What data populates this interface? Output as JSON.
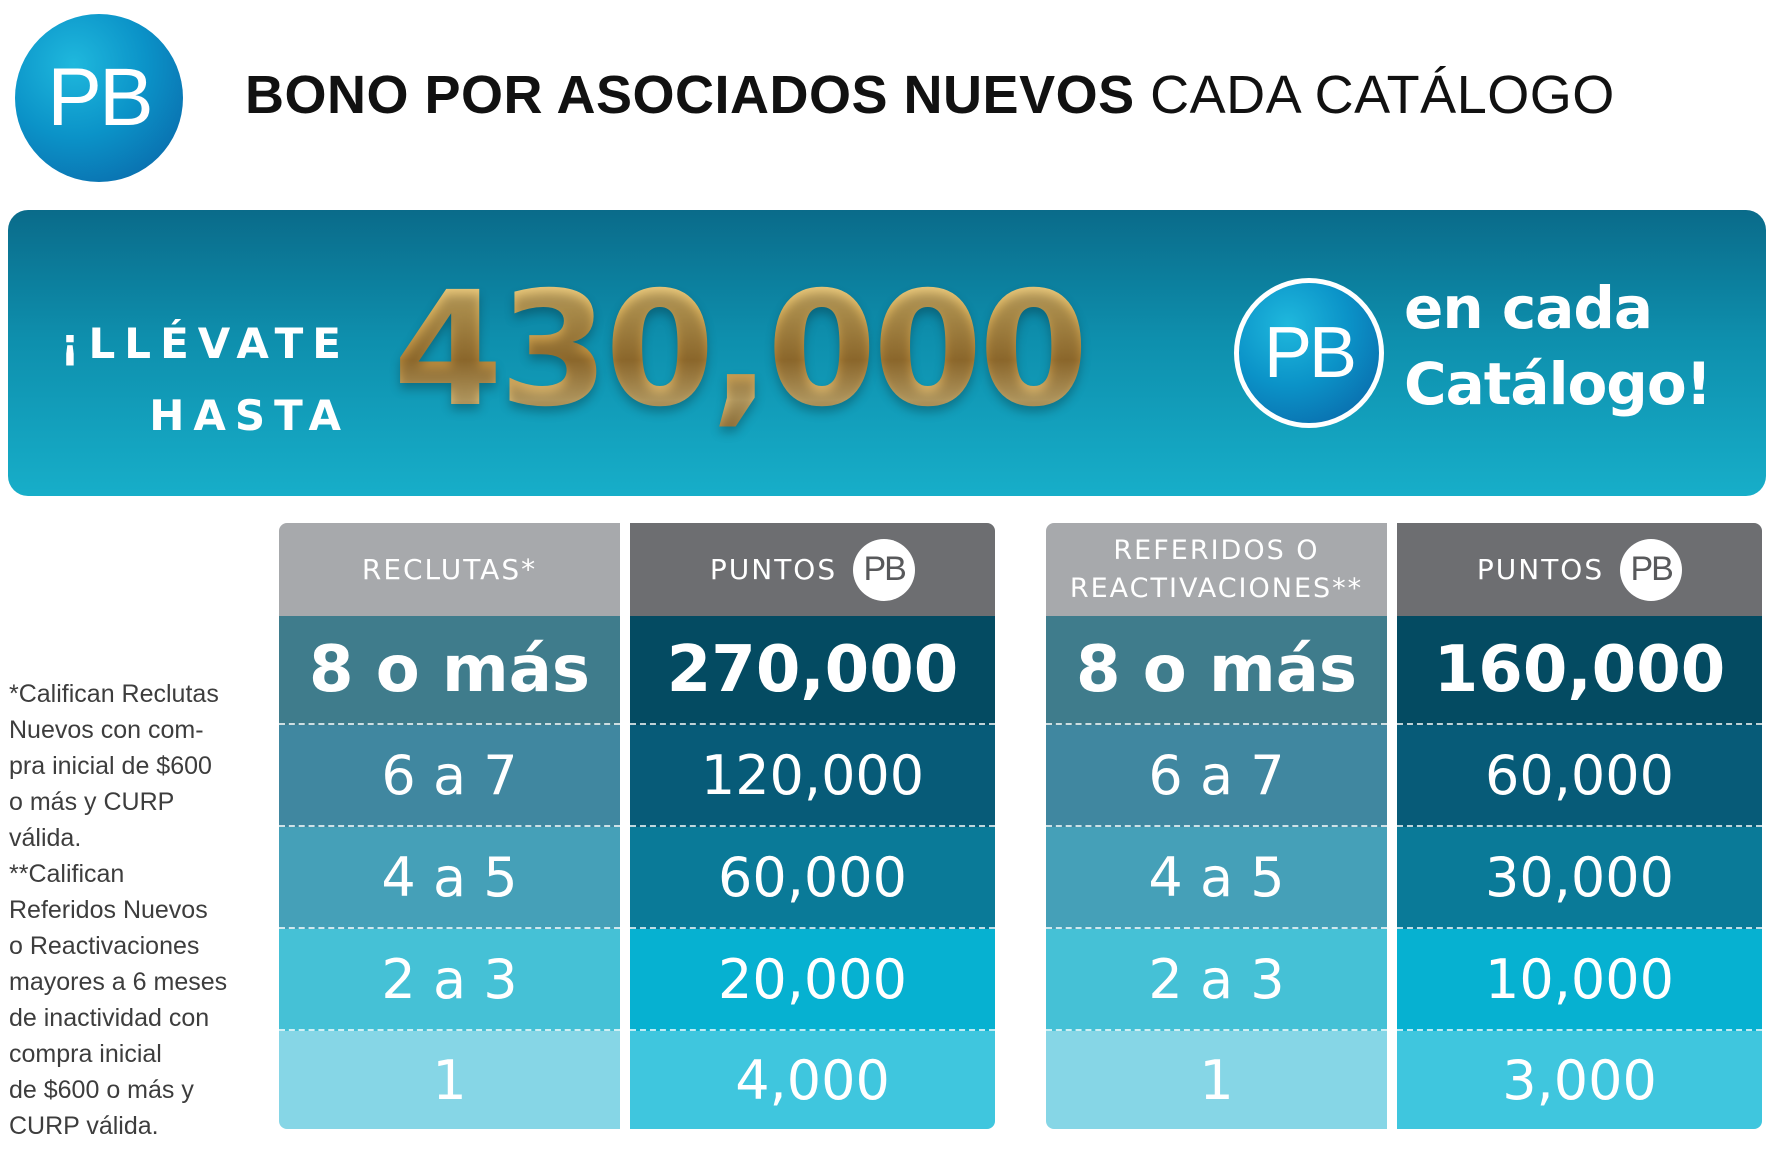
{
  "brand": {
    "logo_text": "PB",
    "primary": "#0b93c8",
    "gold": "#c9a04e"
  },
  "title": {
    "bold": "BONO POR ASOCIADOS NUEVOS",
    "normal": "CADA CATÁLOGO"
  },
  "banner": {
    "lead_line1": "¡LLÉVATE",
    "lead_line2": "HASTA",
    "amount": "430,000",
    "logo_text": "PB",
    "tail_line1": "en cada",
    "tail_line2": "Catálogo!"
  },
  "footnote": {
    "line1": "*Califican Reclutas\nNuevos con com-\npra inicial de $600\no más y CURP\nválida.",
    "line2": "**Califican\nReferidos Nuevos\no Reactivaciones\nmayores a 6 meses\nde inactividad con\ncompra inicial\nde $600 o más y\nCURP válida."
  },
  "table_left": {
    "header_a": "RECLUTAS*",
    "header_b": "PUNTOS",
    "badge": "PB",
    "rows": [
      {
        "range": "8 o más",
        "points": "270,000"
      },
      {
        "range": "6 a 7",
        "points": "120,000"
      },
      {
        "range": "4 a 5",
        "points": "60,000"
      },
      {
        "range": "2 a 3",
        "points": "20,000"
      },
      {
        "range": "1",
        "points": "4,000"
      }
    ]
  },
  "table_right": {
    "header_a_line1": "REFERIDOS O",
    "header_a_line2": "REACTIVACIONES**",
    "header_b": "PUNTOS",
    "badge": "PB",
    "rows": [
      {
        "range": "8 o más",
        "points": "160,000"
      },
      {
        "range": "6 a 7",
        "points": "60,000"
      },
      {
        "range": "4 a 5",
        "points": "30,000"
      },
      {
        "range": "2 a 3",
        "points": "10,000"
      },
      {
        "range": "1",
        "points": "3,000"
      }
    ]
  }
}
